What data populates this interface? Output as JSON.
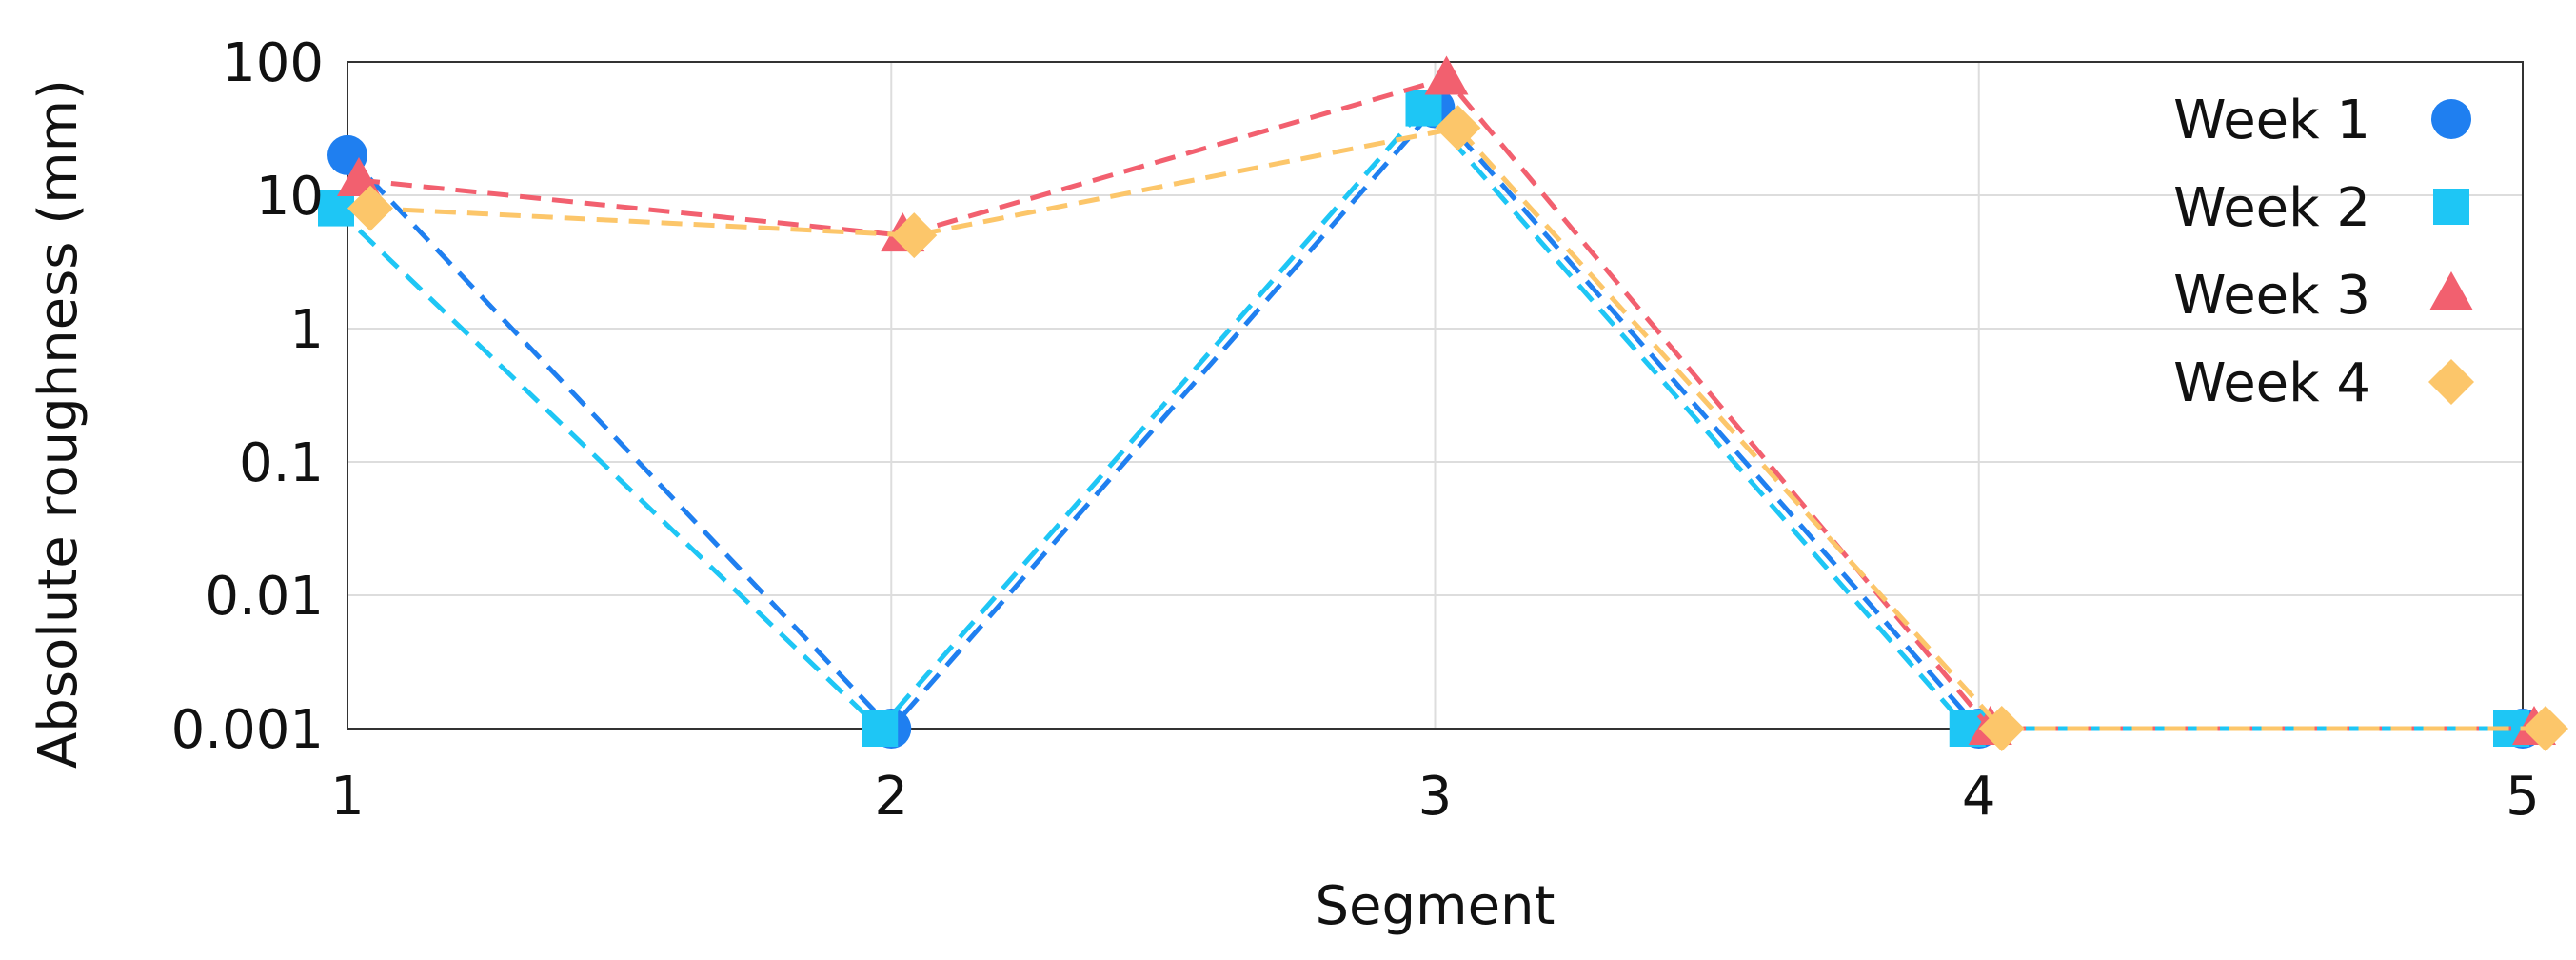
{
  "chart_data": {
    "type": "line",
    "title": "",
    "xlabel": "Segment",
    "ylabel": "Absolute roughness (mm)",
    "y_scale": "log",
    "ylim": [
      0.001,
      100
    ],
    "xlim": [
      1,
      5
    ],
    "grid": true,
    "legend_position": "top-right",
    "x_ticks": [
      "1",
      "2",
      "3",
      "4",
      "5"
    ],
    "y_ticks": [
      "100",
      "10",
      "1",
      "0.1",
      "0.01",
      "0.001"
    ],
    "x": [
      1,
      2,
      3,
      4,
      5
    ],
    "series": [
      {
        "name": "Week 1",
        "marker": "circle",
        "color": "#1f7ff0",
        "values": [
          20,
          0.001,
          45,
          0.001,
          0.001
        ]
      },
      {
        "name": "Week 2",
        "marker": "square",
        "color": "#1ec6f5",
        "values": [
          8,
          0.001,
          45,
          0.001,
          0.001
        ]
      },
      {
        "name": "Week 3",
        "marker": "triangle",
        "color": "#f2606f",
        "values": [
          13,
          5,
          75,
          0.001,
          0.001
        ]
      },
      {
        "name": "Week 4",
        "marker": "diamond",
        "color": "#fcc66a",
        "values": [
          8,
          5,
          32,
          0.001,
          0.001
        ]
      }
    ]
  }
}
